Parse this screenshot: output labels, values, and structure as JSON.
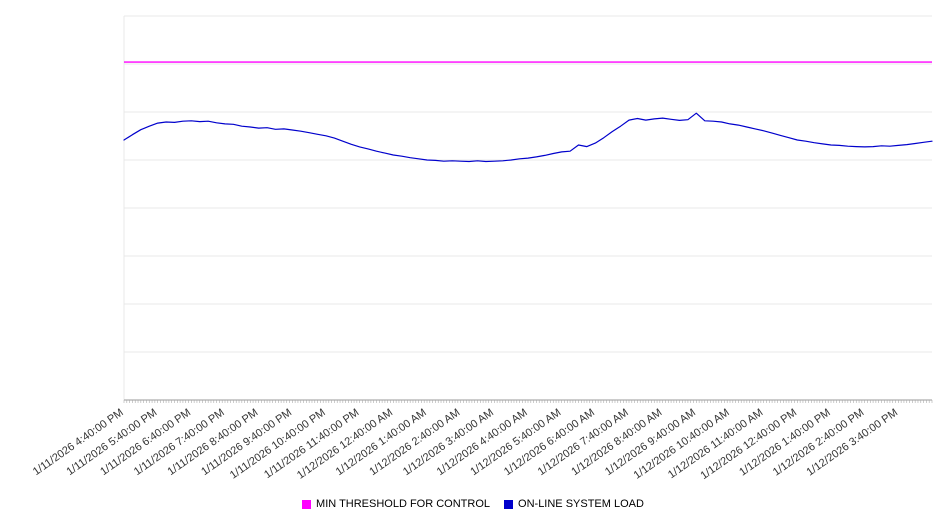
{
  "chart_data": {
    "type": "line",
    "title": "",
    "xlabel": "",
    "ylabel": "",
    "ylim": [
      0,
      100
    ],
    "y_gridline_divisions": 8,
    "grid": true,
    "legend_position": "bottom-center",
    "x_minor_ticks_per_hour": 12,
    "points_per_hour": 4,
    "x_tick_labels": [
      "1/11/2026 4:40:00 PM",
      "1/11/2026 5:40:00 PM",
      "1/11/2026 6:40:00 PM",
      "1/11/2026 7:40:00 PM",
      "1/11/2026 8:40:00 PM",
      "1/11/2026 9:40:00 PM",
      "1/11/2026 10:40:00 PM",
      "1/11/2026 11:40:00 PM",
      "1/12/2026 12:40:00 AM",
      "1/12/2026 1:40:00 AM",
      "1/12/2026 2:40:00 AM",
      "1/12/2026 3:40:00 AM",
      "1/12/2026 4:40:00 AM",
      "1/12/2026 5:40:00 AM",
      "1/12/2026 6:40:00 AM",
      "1/12/2026 7:40:00 AM",
      "1/12/2026 8:40:00 AM",
      "1/12/2026 9:40:00 AM",
      "1/12/2026 10:40:00 AM",
      "1/12/2026 11:40:00 AM",
      "1/12/2026 12:40:00 PM",
      "1/12/2026 1:40:00 PM",
      "1/12/2026 2:40:00 PM",
      "1/12/2026 3:40:00 PM"
    ],
    "series": [
      {
        "name": "MIN THRESHOLD FOR CONTROL",
        "kind": "threshold",
        "color": "#FF00FF",
        "value": 88
      },
      {
        "name": "ON-LINE SYSTEM LOAD",
        "kind": "line",
        "color": "#0000CC",
        "values": [
          67.7,
          69.1,
          70.4,
          71.3,
          72.1,
          72.4,
          72.3,
          72.6,
          72.7,
          72.5,
          72.6,
          72.2,
          71.9,
          71.8,
          71.3,
          71.1,
          70.8,
          70.9,
          70.5,
          70.6,
          70.3,
          70.0,
          69.6,
          69.2,
          68.8,
          68.2,
          67.4,
          66.6,
          65.9,
          65.4,
          64.8,
          64.3,
          63.8,
          63.5,
          63.1,
          62.8,
          62.5,
          62.4,
          62.2,
          62.3,
          62.2,
          62.1,
          62.3,
          62.1,
          62.2,
          62.3,
          62.5,
          62.8,
          63.0,
          63.3,
          63.7,
          64.2,
          64.6,
          64.8,
          66.4,
          66.0,
          66.9,
          68.3,
          69.9,
          71.3,
          72.9,
          73.3,
          72.9,
          73.2,
          73.4,
          73.1,
          72.8,
          73.0,
          74.7,
          72.7,
          72.6,
          72.4,
          71.9,
          71.6,
          71.1,
          70.6,
          70.1,
          69.5,
          68.9,
          68.3,
          67.7,
          67.4,
          67.0,
          66.7,
          66.4,
          66.3,
          66.1,
          66.0,
          65.9,
          66.0,
          66.2,
          66.1,
          66.3,
          66.5,
          66.8,
          67.1,
          67.4
        ]
      }
    ],
    "colors": {
      "gridline": "#e8e8e8",
      "axis": "#999999",
      "minor_tick": "#aaaaaa",
      "tick_label": "#333333"
    }
  }
}
